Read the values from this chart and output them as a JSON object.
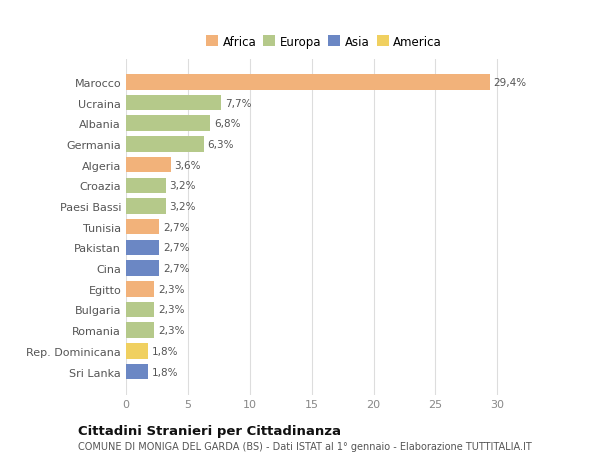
{
  "countries": [
    "Marocco",
    "Ucraina",
    "Albania",
    "Germania",
    "Algeria",
    "Croazia",
    "Paesi Bassi",
    "Tunisia",
    "Pakistan",
    "Cina",
    "Egitto",
    "Bulgaria",
    "Romania",
    "Rep. Dominicana",
    "Sri Lanka"
  ],
  "values": [
    29.4,
    7.7,
    6.8,
    6.3,
    3.6,
    3.2,
    3.2,
    2.7,
    2.7,
    2.7,
    2.3,
    2.3,
    2.3,
    1.8,
    1.8
  ],
  "labels": [
    "29,4%",
    "7,7%",
    "6,8%",
    "6,3%",
    "3,6%",
    "3,2%",
    "3,2%",
    "2,7%",
    "2,7%",
    "2,7%",
    "2,3%",
    "2,3%",
    "2,3%",
    "1,8%",
    "1,8%"
  ],
  "continents": [
    "Africa",
    "Europa",
    "Europa",
    "Europa",
    "Africa",
    "Europa",
    "Europa",
    "Africa",
    "Asia",
    "Asia",
    "Africa",
    "Europa",
    "Europa",
    "America",
    "Asia"
  ],
  "colors": {
    "Africa": "#F2B27A",
    "Europa": "#B5C98A",
    "Asia": "#6B87C4",
    "America": "#F0D060"
  },
  "legend_labels": [
    "Africa",
    "Europa",
    "Asia",
    "America"
  ],
  "legend_colors": [
    "#F2B27A",
    "#B5C98A",
    "#6B87C4",
    "#F0D060"
  ],
  "title": "Cittadini Stranieri per Cittadinanza",
  "subtitle": "COMUNE DI MONIGA DEL GARDA (BS) - Dati ISTAT al 1° gennaio - Elaborazione TUTTITALIA.IT",
  "xlim": [
    0,
    32
  ],
  "xticks": [
    0,
    5,
    10,
    15,
    20,
    25,
    30
  ],
  "bg_color": "#ffffff",
  "grid_color": "#dddddd"
}
